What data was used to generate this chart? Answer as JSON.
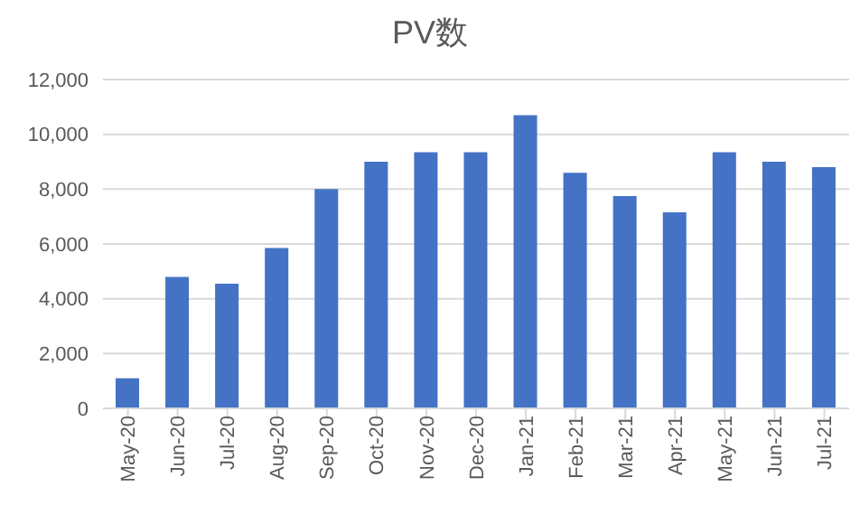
{
  "chart_data": {
    "type": "bar",
    "title": "PV数",
    "categories": [
      "May-20",
      "Jun-20",
      "Jul-20",
      "Aug-20",
      "Sep-20",
      "Oct-20",
      "Nov-20",
      "Dec-20",
      "Jan-21",
      "Feb-21",
      "Mar-21",
      "Apr-21",
      "May-21",
      "Jun-21",
      "Jul-21"
    ],
    "values": [
      1100,
      4800,
      4550,
      5850,
      8000,
      9000,
      9350,
      9350,
      10700,
      8600,
      7750,
      7150,
      9350,
      9000,
      8800
    ],
    "color": "#4472c4",
    "ylim": [
      0,
      12000
    ],
    "yticks": [
      {
        "value": 0,
        "label": "0"
      },
      {
        "value": 2000,
        "label": "2,000"
      },
      {
        "value": 4000,
        "label": "4,000"
      },
      {
        "value": 6000,
        "label": "6,000"
      },
      {
        "value": 8000,
        "label": "8,000"
      },
      {
        "value": 10000,
        "label": "10,000"
      },
      {
        "value": 12000,
        "label": "12,000"
      }
    ],
    "grid": "y",
    "legend": false
  }
}
